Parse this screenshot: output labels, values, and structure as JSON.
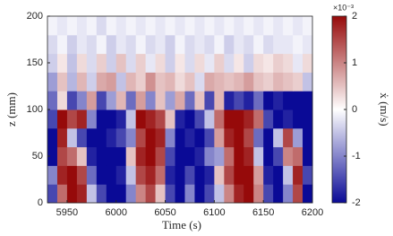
{
  "chart_data": {
    "type": "heatmap",
    "x_label": "Time (s)",
    "y_label": "z (mm)",
    "colorbar_label": "ẋ (m/s)",
    "colorbar_scale": "×10⁻³",
    "x": [
      5935,
      5945,
      5955,
      5965,
      5975,
      5985,
      5995,
      6005,
      6015,
      6025,
      6035,
      6045,
      6055,
      6065,
      6075,
      6085,
      6095,
      6105,
      6115,
      6125,
      6135,
      6145,
      6155,
      6165,
      6175,
      6185,
      6195
    ],
    "z": [
      10,
      30,
      50,
      70,
      90,
      110,
      130,
      150,
      170,
      190
    ],
    "values": [
      [
        -1.5,
        1.2,
        2,
        1.8,
        -0.5,
        -1.5,
        -2,
        -2,
        -1,
        1,
        1.5,
        0.5,
        -1.5,
        -2,
        -1,
        -2,
        -1.5,
        -0.5,
        1,
        1.8,
        2,
        1,
        -1.5,
        -2,
        -1,
        1.5,
        -2
      ],
      [
        -1,
        1.8,
        2,
        1.5,
        -1.2,
        -2,
        -2,
        -1.8,
        -0.5,
        1.5,
        1.8,
        1.2,
        -1.8,
        -2,
        -1.5,
        -2,
        -1.8,
        0.5,
        1.5,
        2,
        2,
        0.8,
        -1.8,
        -2,
        -0.5,
        1.8,
        -1.5
      ],
      [
        -2,
        1.5,
        1.2,
        0.5,
        -1.8,
        -2,
        -2,
        -2,
        0.5,
        1.8,
        2,
        1.5,
        -1.5,
        -2,
        -2,
        -1.8,
        -1,
        -0.8,
        1.2,
        2,
        1.8,
        -0.5,
        -2,
        -1.5,
        1,
        1.2,
        -2
      ],
      [
        -2,
        1.8,
        -0.5,
        -1.5,
        -2,
        -2,
        -1.8,
        -1.5,
        -1,
        1.5,
        2,
        1.8,
        -1,
        -2,
        -1.8,
        -2,
        -1.5,
        0.8,
        1.8,
        2,
        1.5,
        -1.2,
        -2,
        -0.5,
        1.5,
        -0.8,
        -2
      ],
      [
        -1.5,
        2,
        1.5,
        1.8,
        -1,
        -2,
        -2,
        -1.8,
        -0.5,
        2,
        1.8,
        1.5,
        0.5,
        -1.8,
        -2,
        -1.5,
        -0.5,
        1.2,
        2,
        2,
        1.8,
        1.2,
        -1.5,
        -2,
        -1.8,
        -2,
        -2
      ],
      [
        -1.2,
        0.3,
        -1.5,
        -1,
        0.8,
        -1.5,
        -0.8,
        0.6,
        -1.2,
        0.8,
        -1,
        0.5,
        -0.8,
        0.7,
        -1.2,
        0.5,
        -1.5,
        0.6,
        -1.8,
        -1.5,
        -1.8,
        -1.2,
        -2,
        -1.8,
        -2,
        -2,
        -2
      ],
      [
        -0.8,
        0.5,
        -0.6,
        0.6,
        -0.4,
        0.7,
        0.8,
        -0.5,
        0.6,
        0.4,
        0.9,
        0.5,
        0.6,
        0.3,
        0.5,
        -0.3,
        0.7,
        0.6,
        0.5,
        0.6,
        0.8,
        0.5,
        0.4,
        0.6,
        0.5,
        0.4,
        -0.5
      ],
      [
        -0.4,
        0.2,
        -0.5,
        0.3,
        -0.3,
        0.4,
        -0.4,
        0.5,
        -0.3,
        0.4,
        -0.2,
        0.3,
        -0.4,
        0.2,
        -0.3,
        0.3,
        -0.2,
        0.4,
        -0.3,
        0.2,
        -0.4,
        0.3,
        0.2,
        0.4,
        0.3,
        -0.2,
        0.3
      ],
      [
        -0.3,
        -0.1,
        -0.4,
        -0.2,
        -0.3,
        -0.1,
        -0.4,
        -0.2,
        -0.3,
        -0.1,
        -0.3,
        -0.2,
        -0.4,
        -0.1,
        -0.3,
        -0.2,
        -0.3,
        -0.1,
        -0.4,
        -0.2,
        -0.3,
        -0.1,
        -0.3,
        -0.2,
        -0.2,
        -0.1,
        -0.2
      ],
      [
        -0.1,
        -0.2,
        -0.1,
        -0.2,
        -0.1,
        -0.3,
        -0.1,
        -0.2,
        -0.1,
        -0.2,
        -0.1,
        -0.2,
        -0.1,
        -0.2,
        -0.1,
        -0.2,
        -0.1,
        -0.2,
        -0.1,
        -0.2,
        -0.1,
        -0.2,
        -0.1,
        -0.2,
        -0.1,
        -0.2,
        -0.1
      ]
    ],
    "xlim": [
      5930,
      6200
    ],
    "ylim": [
      0,
      200
    ],
    "xticks": [
      5950,
      6000,
      6050,
      6100,
      6150,
      6200
    ],
    "yticks": [
      0,
      50,
      100,
      150,
      200
    ],
    "clim": [
      -2,
      2
    ],
    "cticks": [
      -2,
      -1,
      0,
      1,
      2
    ],
    "colormap": [
      "#0a0a96",
      "#ffffff",
      "#960a0a"
    ]
  }
}
